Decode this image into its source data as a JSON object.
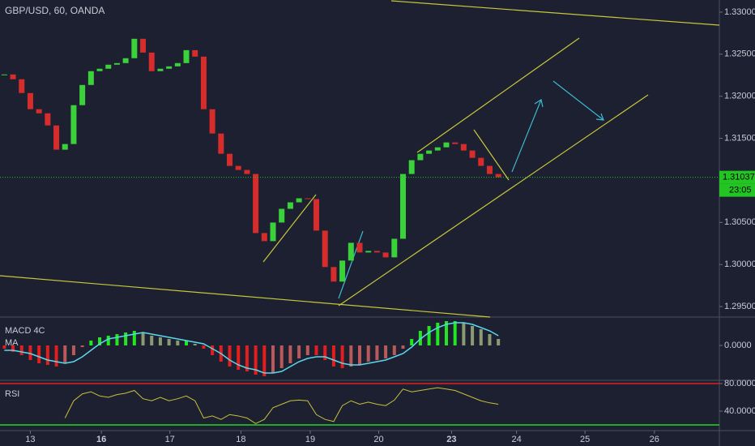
{
  "chart_data": [
    {
      "type": "candlestick",
      "title": "GBP/USD, 60, OANDA",
      "values": [
        1.32259,
        1.32202,
        1.32038,
        1.31846,
        1.31797,
        1.31653,
        1.31365,
        1.31432,
        1.31894,
        1.32134,
        1.32298,
        1.32327,
        1.32375,
        1.32394,
        1.32452,
        1.32683,
        1.32519,
        1.32298,
        1.32327,
        1.32355,
        1.32394,
        1.32548,
        1.32471,
        1.31846,
        1.31557,
        1.31316,
        1.31172,
        1.31124,
        1.31076,
        1.30374,
        1.30278,
        1.30499,
        1.30662,
        1.30739,
        1.30787,
        1.30778,
        1.30403,
        1.2997,
        1.29797,
        1.30047,
        1.30258,
        1.30143,
        1.30162,
        1.30143,
        1.30085,
        1.30306,
        1.31076,
        1.3124,
        1.31316,
        1.31355,
        1.31393,
        1.31451,
        1.31432,
        1.31355,
        1.31268,
        1.31172,
        1.31076,
        1.31037
      ],
      "up_color": "#3ad13a",
      "down_color": "#d62c2c",
      "last_price": 1.31037,
      "countdown": "23:05",
      "last_price_color": "#22c522",
      "xlim": [
        -0.5,
        82.5
      ],
      "ylim": [
        1.29385,
        1.33144
      ],
      "yticks": [
        {
          "value": 1.33,
          "label": "1.33000"
        },
        {
          "value": 1.325,
          "label": "1.32500"
        },
        {
          "value": 1.32,
          "label": "1.32000"
        },
        {
          "value": 1.315,
          "label": "1.31500"
        },
        {
          "value": 1.305,
          "label": "1.30500"
        },
        {
          "value": 1.3,
          "label": "1.30000"
        },
        {
          "value": 1.295,
          "label": "1.29500"
        }
      ]
    },
    {
      "type": "macd",
      "title": "MACD 4C",
      "values": [
        -0.0002,
        -0.0004,
        -0.0006,
        -0.0009,
        -0.0011,
        -0.0012,
        -0.0013,
        -0.0011,
        -0.0006,
        -0.0001,
        0.0003,
        0.0005,
        0.0006,
        0.0007,
        0.0008,
        0.0009,
        0.0008,
        0.0006,
        0.0005,
        0.0004,
        0.0003,
        0.0003,
        0.0001,
        -0.0002,
        -0.0006,
        -0.001,
        -0.0013,
        -0.0015,
        -0.0016,
        -0.0018,
        -0.0019,
        -0.0017,
        -0.0014,
        -0.0011,
        -0.0008,
        -0.0006,
        -0.0006,
        -0.0009,
        -0.0013,
        -0.0014,
        -0.0013,
        -0.0012,
        -0.001,
        -0.0009,
        -0.0008,
        -0.0006,
        -0.0002,
        0.0004,
        0.0009,
        0.0012,
        0.0014,
        0.0015,
        0.0015,
        0.0014,
        0.0012,
        0.001,
        0.0007,
        0.0004
      ],
      "colors": [
        "#22e622",
        "#8a9a72",
        "#e21e1e",
        "#b85a5a"
      ],
      "series": [
        {
          "name": "MA",
          "color": "#5ad8ec",
          "values": [
            -0.0003,
            -0.0003,
            -0.0004,
            -0.0005,
            -0.0007,
            -0.0009,
            -0.001,
            -0.0011,
            -0.001,
            -0.0007,
            -0.0003,
            0.0001,
            0.0004,
            0.0005,
            0.0006,
            0.0007,
            0.0008,
            0.0007,
            0.0006,
            0.0005,
            0.0004,
            0.0003,
            0.0002,
            0.0001,
            -0.0002,
            -0.0005,
            -0.0009,
            -0.0012,
            -0.0014,
            -0.0015,
            -0.0017,
            -0.0017,
            -0.0016,
            -0.0013,
            -0.001,
            -0.0008,
            -0.0007,
            -0.0007,
            -0.0009,
            -0.0011,
            -0.0012,
            -0.0012,
            -0.0011,
            -0.001,
            -0.0009,
            -0.0007,
            -0.0005,
            -0.0001,
            0.0004,
            0.0008,
            0.0011,
            0.0013,
            0.0014,
            0.0014,
            0.0013,
            0.0011,
            0.0009,
            0.0006
          ]
        }
      ],
      "xlim": [
        -0.5,
        82.5
      ],
      "ylim": [
        -0.0021,
        0.0017
      ],
      "yticks": [
        {
          "value": 0,
          "label": "0.0000"
        }
      ]
    },
    {
      "type": "rsi",
      "title": "RSI",
      "color": "#c8c23c",
      "values": [
        null,
        null,
        null,
        null,
        null,
        null,
        null,
        30,
        55,
        65,
        68,
        62,
        60,
        64,
        66,
        70,
        58,
        55,
        60,
        55,
        58,
        62,
        55,
        30,
        33,
        28,
        35,
        33,
        30,
        22,
        28,
        45,
        50,
        55,
        56,
        55,
        35,
        28,
        25,
        48,
        55,
        50,
        53,
        50,
        48,
        56,
        72,
        68,
        70,
        72,
        74,
        72,
        70,
        65,
        60,
        55,
        52,
        50
      ],
      "levels": [
        {
          "value": 80,
          "color": "#e02020"
        },
        {
          "value": 20,
          "color": "#22d822"
        }
      ],
      "xlim": [
        -0.5,
        82.5
      ],
      "ylim": [
        12.94,
        83.53
      ],
      "yticks": [
        {
          "value": 80,
          "label": "80.0000"
        },
        {
          "value": 40,
          "label": "40.0000"
        }
      ],
      "xticks": [
        {
          "value": 3,
          "label": "13"
        },
        {
          "value": 11.2,
          "label": "16"
        },
        {
          "value": 19.1,
          "label": "17"
        },
        {
          "value": 27.3,
          "label": "18"
        },
        {
          "value": 35.3,
          "label": "19"
        },
        {
          "value": 43.2,
          "label": "20"
        },
        {
          "value": 51.6,
          "label": "23"
        },
        {
          "value": 59.1,
          "label": "24"
        },
        {
          "value": 67,
          "label": "25"
        },
        {
          "value": 75,
          "label": "26"
        }
      ]
    }
  ]
}
